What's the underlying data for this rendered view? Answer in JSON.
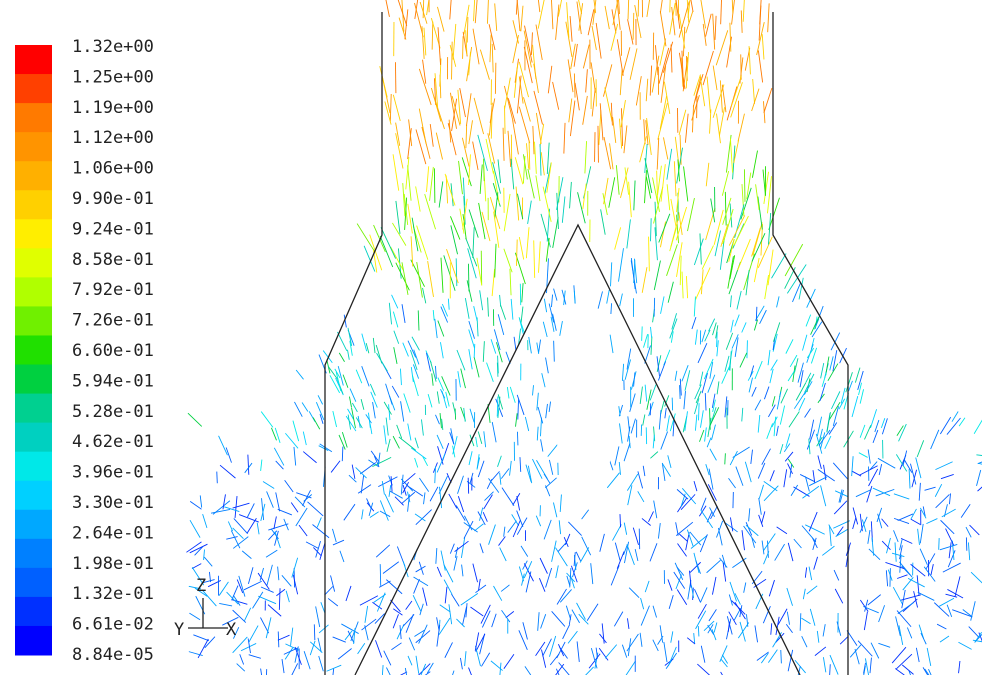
{
  "legend": {
    "labels": [
      "1.32e+00",
      "1.25e+00",
      "1.19e+00",
      "1.12e+00",
      "1.06e+00",
      "9.90e-01",
      "9.24e-01",
      "8.58e-01",
      "7.92e-01",
      "7.26e-01",
      "6.60e-01",
      "5.94e-01",
      "5.28e-01",
      "4.62e-01",
      "3.96e-01",
      "3.30e-01",
      "2.64e-01",
      "1.98e-01",
      "1.32e-01",
      "6.61e-02",
      "8.84e-05"
    ],
    "colors": [
      "#ff0000",
      "#ff4000",
      "#ff7a00",
      "#ff9400",
      "#ffb000",
      "#ffd000",
      "#ffee00",
      "#e0ff00",
      "#b0ff00",
      "#70f000",
      "#20e000",
      "#00d040",
      "#00d090",
      "#00d0c0",
      "#00e8e8",
      "#00d0ff",
      "#00a8ff",
      "#0080ff",
      "#0060ff",
      "#0030ff",
      "#0000ff"
    ]
  },
  "axes": {
    "z": "Z",
    "y": "Y",
    "x": "X"
  }
}
